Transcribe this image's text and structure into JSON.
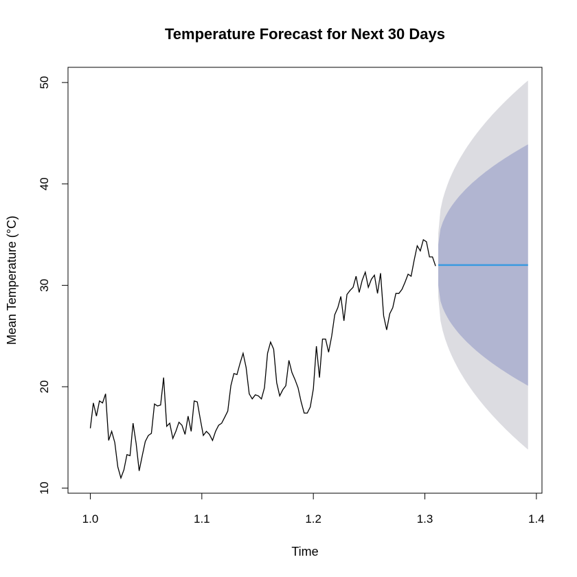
{
  "chart_data": {
    "type": "line",
    "title": "Temperature Forecast for Next 30 Days",
    "xlabel": "Time",
    "ylabel": "Mean Temperature (°C)",
    "xlim": [
      0.98,
      1.405
    ],
    "ylim": [
      9.5,
      51.5
    ],
    "x_ticks": [
      1.0,
      1.1,
      1.2,
      1.3,
      1.4
    ],
    "x_tick_labels": [
      "1.0",
      "1.1",
      "1.2",
      "1.3",
      "1.4"
    ],
    "y_ticks": [
      10,
      20,
      30,
      40,
      50
    ],
    "y_tick_labels": [
      "10",
      "20",
      "30",
      "40",
      "50"
    ],
    "grid": false,
    "legend": "none",
    "history": {
      "x_start": 1.0,
      "x_step": 0.002739726,
      "values": [
        15.9,
        18.4,
        17.1,
        18.6,
        18.4,
        19.3,
        14.7,
        15.6,
        14.5,
        12.1,
        11.0,
        11.8,
        13.3,
        13.2,
        16.4,
        14.4,
        11.7,
        13.2,
        14.6,
        15.2,
        15.4,
        18.3,
        18.1,
        18.2,
        20.9,
        16.1,
        16.4,
        14.9,
        15.6,
        16.5,
        16.2,
        15.3,
        17.1,
        15.6,
        18.6,
        18.5,
        16.8,
        15.2,
        15.6,
        15.3,
        14.7,
        15.6,
        16.2,
        16.4,
        17.0,
        17.6,
        20.1,
        21.3,
        21.2,
        22.3,
        23.3,
        21.9,
        19.3,
        18.8,
        19.2,
        19.1,
        18.8,
        19.9,
        23.3,
        24.4,
        23.7,
        20.4,
        19.1,
        19.7,
        20.1,
        22.6,
        21.4,
        20.7,
        19.9,
        18.5,
        17.4,
        17.4,
        18.0,
        19.8,
        24.0,
        20.9,
        24.7,
        24.7,
        23.4,
        25.0,
        27.1,
        27.8,
        28.9,
        26.5,
        29.1,
        29.5,
        29.8,
        30.9,
        29.3,
        30.5,
        31.3,
        29.8,
        30.6,
        31.0,
        29.2,
        31.2,
        27.0,
        25.6,
        27.2,
        27.8,
        29.2,
        29.2,
        29.6,
        30.3,
        31.1,
        30.9,
        32.5,
        33.9,
        33.4,
        34.5,
        34.3,
        32.8,
        32.8,
        31.9
      ]
    },
    "forecast": {
      "x_start": 1.312,
      "x_end": 1.3925,
      "mean": 32.0,
      "lower80": [
        30.0,
        20.1
      ],
      "upper80": [
        34.0,
        43.9
      ],
      "lower95": [
        28.9,
        13.8
      ],
      "upper95": [
        35.1,
        50.2
      ]
    },
    "colors": {
      "history_line": "#000000",
      "forecast_line": "#3a9ae0",
      "band80": "#b1b5d1",
      "band95": "#dcdce1"
    }
  }
}
